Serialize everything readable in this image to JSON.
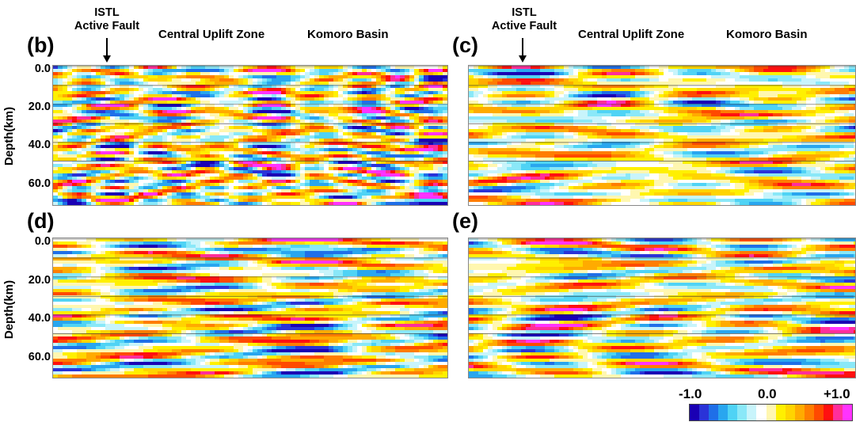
{
  "panels": [
    {
      "id": "b",
      "label": "(b)"
    },
    {
      "id": "c",
      "label": "(c)"
    },
    {
      "id": "d",
      "label": "(d)"
    },
    {
      "id": "e",
      "label": "(e)"
    }
  ],
  "annotations": {
    "fault_line1": "ISTL",
    "fault_line2": "Active Fault",
    "zone": "Central Uplift Zone",
    "basin": "Komoro Basin"
  },
  "axis": {
    "ylabel": "Depth(km)",
    "ticks": [
      "0.0",
      "20.0",
      "40.0",
      "60.0"
    ]
  },
  "colorbar": {
    "min_label": "-1.0",
    "mid_label": "0.0",
    "max_label": "+1.0",
    "colors": [
      "#1a00b4",
      "#2a33d8",
      "#1f6fe8",
      "#29a6ef",
      "#4fd3f5",
      "#8ae8f8",
      "#c8f4fb",
      "#ffffff",
      "#fff7b0",
      "#fff000",
      "#ffd400",
      "#ffab00",
      "#ff7d00",
      "#ff4a00",
      "#ff1010",
      "#ff2e9a",
      "#ff33ff"
    ]
  }
}
